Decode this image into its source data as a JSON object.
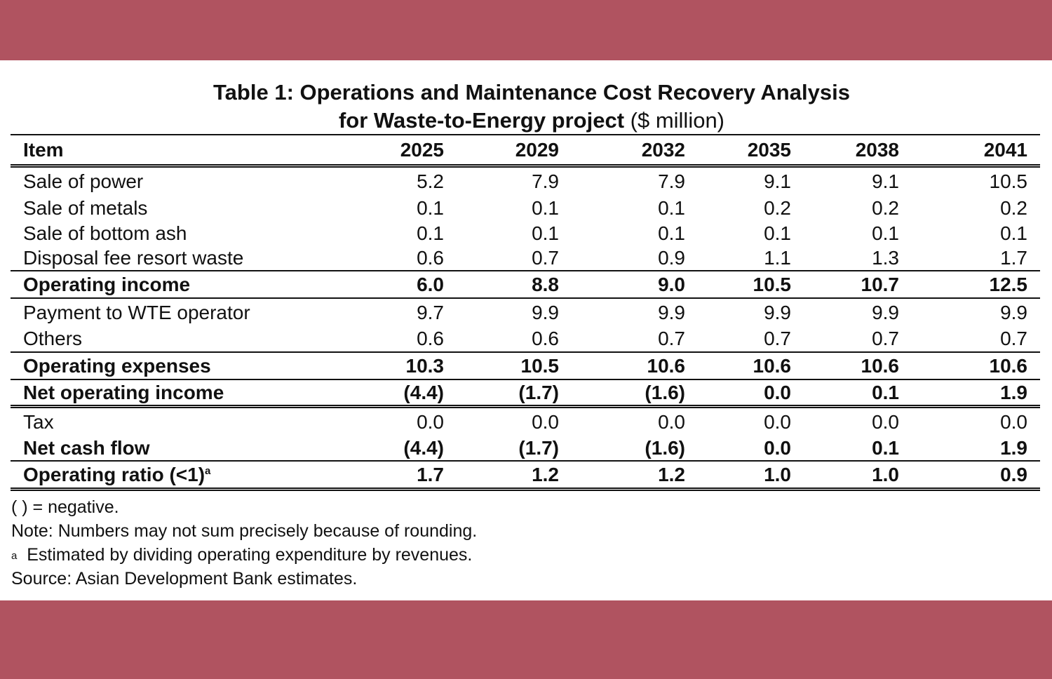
{
  "title_line1": "Table 1: Operations and Maintenance Cost Recovery Analysis",
  "title_line2": "for Waste-to-Energy project",
  "title_unit": "($ million)",
  "columns": [
    "Item",
    "2025",
    "2029",
    "2032",
    "2035",
    "2038",
    "2041"
  ],
  "rows": [
    {
      "label": "Sale of power",
      "values": [
        "5.2",
        "7.9",
        "7.9",
        "9.1",
        "9.1",
        "10.5"
      ]
    },
    {
      "label": "Sale of metals",
      "values": [
        "0.1",
        "0.1",
        "0.1",
        "0.2",
        "0.2",
        "0.2"
      ]
    },
    {
      "label": "Sale of bottom ash",
      "values": [
        "0.1",
        "0.1",
        "0.1",
        "0.1",
        "0.1",
        "0.1"
      ]
    },
    {
      "label": "Disposal fee resort waste",
      "values": [
        "0.6",
        "0.7",
        "0.9",
        "1.1",
        "1.3",
        "1.7"
      ]
    },
    {
      "label": "Operating income",
      "values": [
        "6.0",
        "8.8",
        "9.0",
        "10.5",
        "10.7",
        "12.5"
      ]
    },
    {
      "label": "Payment to WTE operator",
      "values": [
        "9.7",
        "9.9",
        "9.9",
        "9.9",
        "9.9",
        "9.9"
      ]
    },
    {
      "label": "Others",
      "values": [
        "0.6",
        "0.6",
        "0.7",
        "0.7",
        "0.7",
        "0.7"
      ]
    },
    {
      "label": "Operating expenses",
      "values": [
        "10.3",
        "10.5",
        "10.6",
        "10.6",
        "10.6",
        "10.6"
      ]
    },
    {
      "label": "Net operating income",
      "values": [
        "(4.4)",
        "(1.7)",
        "(1.6)",
        "0.0",
        "0.1",
        "1.9"
      ]
    },
    {
      "label": "Tax",
      "values": [
        "0.0",
        "0.0",
        "0.0",
        "0.0",
        "0.0",
        "0.0"
      ]
    },
    {
      "label": "Net cash flow",
      "values": [
        "(4.4)",
        "(1.7)",
        "(1.6)",
        "0.0",
        "0.1",
        "1.9"
      ]
    },
    {
      "label": "Operating ratio (<1)",
      "sup": "a",
      "values": [
        "1.7",
        "1.2",
        "1.2",
        "1.0",
        "1.0",
        "0.9"
      ]
    }
  ],
  "notes": [
    "( ) = negative.",
    "Note: Numbers may not sum precisely because of rounding.",
    "Estimated by dividing operating expenditure by revenues.",
    "Source: Asian Development Bank estimates."
  ],
  "note_sup": "a",
  "colors": {
    "band": "#b05360",
    "paper": "#ffffff",
    "text": "#111111"
  }
}
